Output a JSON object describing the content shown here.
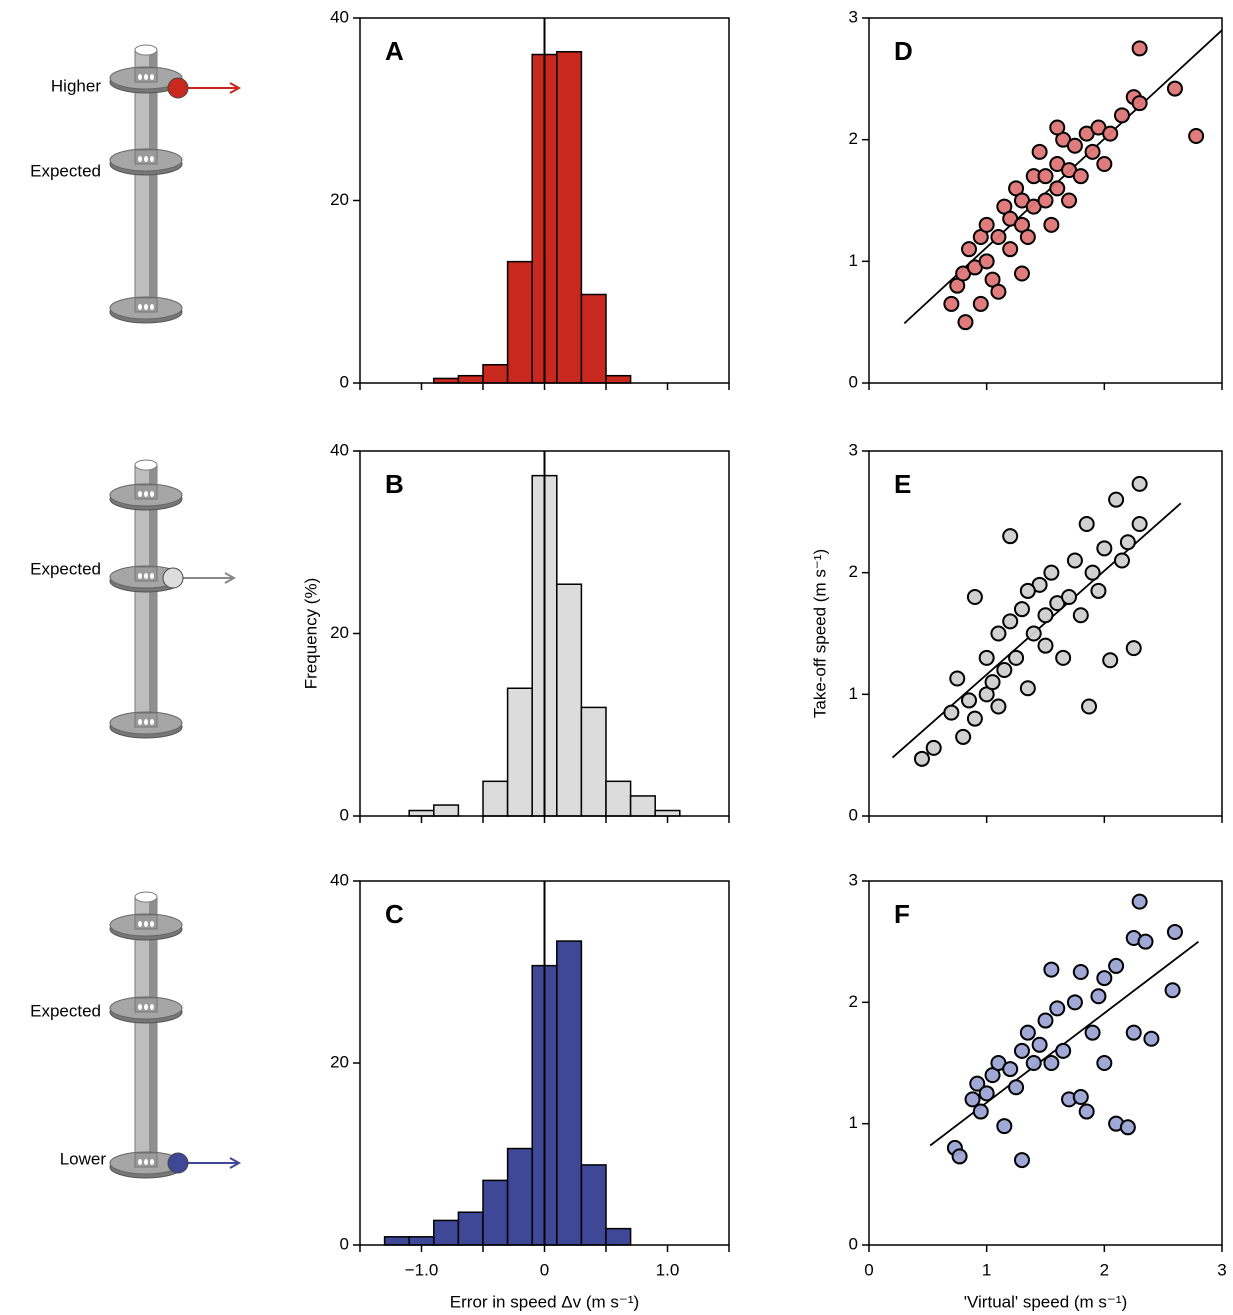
{
  "diagrams": [
    {
      "labels": [
        "Higher",
        "Expected"
      ]
    },
    {
      "labels": [
        "Expected"
      ]
    },
    {
      "labels": [
        "Expected",
        "Lower"
      ]
    }
  ],
  "chart_data": [
    {
      "type": "histogram",
      "label": "A",
      "color": "#c8281e",
      "bins": [
        -0.9,
        -0.7,
        -0.5,
        -0.3,
        -0.1,
        0.1,
        0.3,
        0.5,
        0.7
      ],
      "values": [
        0.5,
        0.8,
        2,
        13.3,
        36,
        36.3,
        9.7,
        0.8
      ],
      "xlim": [
        -1.5,
        1.5
      ],
      "xticks": [
        {
          "value": -1,
          "label": "−1.0"
        },
        0,
        {
          "value": 1,
          "label": "1.0"
        }
      ],
      "xminor_ticks": [
        -1.5,
        -0.5,
        0.5,
        1.5
      ],
      "xtick_labels": false,
      "vline": 0,
      "ylim": [
        0,
        40
      ],
      "yticks": [
        0,
        20,
        40
      ]
    },
    {
      "type": "histogram",
      "label": "B",
      "color": "#dcdcdc",
      "y_label": "Frequency (%)",
      "bins": [
        -1.1,
        -0.9,
        -0.7,
        -0.5,
        -0.3,
        -0.1,
        0.1,
        0.3,
        0.5,
        0.7,
        0.9,
        1.1
      ],
      "values": [
        0.6,
        1.2,
        0,
        3.8,
        14,
        37.3,
        25.4,
        11.9,
        3.8,
        2.2,
        0.6
      ],
      "xlim": [
        -1.5,
        1.5
      ],
      "xticks": [
        {
          "value": -1,
          "label": "−1.0"
        },
        0,
        {
          "value": 1,
          "label": "1.0"
        }
      ],
      "xminor_ticks": [
        -1.5,
        -0.5,
        0.5,
        1.5
      ],
      "xtick_labels": false,
      "vline": 0,
      "ylim": [
        0,
        40
      ],
      "yticks": [
        0,
        20,
        40
      ]
    },
    {
      "type": "histogram",
      "label": "C",
      "color": "#3f4797",
      "x_label": "Error in speed Δv (m s⁻¹)",
      "bins": [
        -1.3,
        -1.1,
        -0.9,
        -0.7,
        -0.5,
        -0.3,
        -0.1,
        0.1,
        0.3,
        0.5,
        0.7
      ],
      "values": [
        0.9,
        0.9,
        2.7,
        3.6,
        7.1,
        10.6,
        30.7,
        33.4,
        8.8,
        1.8
      ],
      "xlim": [
        -1.5,
        1.5
      ],
      "xticks": [
        {
          "value": -1,
          "label": "−1.0"
        },
        0,
        {
          "value": 1,
          "label": "1.0"
        }
      ],
      "xminor_ticks": [
        -1.5,
        -0.5,
        0.5,
        1.5
      ],
      "xtick_labels": true,
      "vline": 0,
      "ylim": [
        0,
        40
      ],
      "yticks": [
        0,
        20,
        40
      ]
    },
    {
      "type": "scatter",
      "label": "D",
      "color": "#de7575",
      "x": [
        0.7,
        0.75,
        0.8,
        0.82,
        0.85,
        0.9,
        0.95,
        1.0,
        1.0,
        1.05,
        1.1,
        1.15,
        1.2,
        1.2,
        1.25,
        1.3,
        1.3,
        1.35,
        1.4,
        1.4,
        1.45,
        1.5,
        1.5,
        1.55,
        1.6,
        1.6,
        1.65,
        1.7,
        1.7,
        1.75,
        1.8,
        1.85,
        1.9,
        1.95,
        2.0,
        2.05,
        2.15,
        2.25,
        2.3,
        2.3,
        2.6,
        2.78,
        1.1,
        0.95,
        1.6,
        1.3
      ],
      "values": [
        0.65,
        0.8,
        0.9,
        0.5,
        1.1,
        0.95,
        1.2,
        1.0,
        1.3,
        0.85,
        1.2,
        1.45,
        1.1,
        1.35,
        1.6,
        1.3,
        1.5,
        1.2,
        1.7,
        1.45,
        1.9,
        1.5,
        1.7,
        1.3,
        1.8,
        1.6,
        2.0,
        1.75,
        1.5,
        1.95,
        1.7,
        2.05,
        1.9,
        2.1,
        1.8,
        2.05,
        2.2,
        2.35,
        2.75,
        2.3,
        2.42,
        2.03,
        0.75,
        0.65,
        2.1,
        0.9
      ],
      "fit_line": {
        "x": [
          0.3,
          3.0
        ],
        "values": [
          0.49,
          2.9
        ]
      },
      "xlim": [
        0,
        3
      ],
      "xticks": [
        0,
        1,
        2,
        3
      ],
      "xtick_labels": false,
      "ylim": [
        0,
        3
      ],
      "yticks": [
        0,
        1,
        2,
        3
      ]
    },
    {
      "type": "scatter",
      "label": "E",
      "color": "#cfcfcf",
      "y_label": "Take-off speed (m s⁻¹)",
      "x": [
        0.45,
        0.55,
        0.7,
        0.75,
        0.8,
        0.85,
        0.9,
        0.9,
        1.0,
        1.0,
        1.05,
        1.1,
        1.1,
        1.15,
        1.2,
        1.2,
        1.25,
        1.3,
        1.35,
        1.4,
        1.45,
        1.5,
        1.5,
        1.55,
        1.6,
        1.65,
        1.7,
        1.75,
        1.8,
        1.85,
        1.87,
        1.9,
        1.95,
        2.0,
        2.05,
        2.1,
        2.2,
        2.25,
        2.3,
        2.3,
        2.15,
        1.35
      ],
      "values": [
        0.47,
        0.56,
        0.85,
        1.13,
        0.65,
        0.95,
        0.8,
        1.8,
        1.0,
        1.3,
        1.1,
        1.5,
        0.9,
        1.2,
        1.6,
        2.3,
        1.3,
        1.7,
        1.05,
        1.5,
        1.9,
        1.4,
        1.65,
        2.0,
        1.75,
        1.3,
        1.8,
        2.1,
        1.65,
        2.4,
        0.9,
        2.0,
        1.85,
        2.2,
        1.28,
        2.6,
        2.25,
        1.38,
        2.4,
        2.73,
        2.1,
        1.85
      ],
      "fit_line": {
        "x": [
          0.2,
          2.65
        ],
        "values": [
          0.48,
          2.57
        ]
      },
      "xlim": [
        0,
        3
      ],
      "xticks": [
        0,
        1,
        2,
        3
      ],
      "xtick_labels": false,
      "ylim": [
        0,
        3
      ],
      "yticks": [
        0,
        1,
        2,
        3
      ]
    },
    {
      "type": "scatter",
      "label": "F",
      "color": "#9ba3d4",
      "x_label": "'Virtual' speed (m s⁻¹)",
      "x": [
        0.73,
        0.77,
        0.88,
        0.92,
        0.95,
        1.0,
        1.05,
        1.1,
        1.15,
        1.2,
        1.25,
        1.3,
        1.3,
        1.35,
        1.4,
        1.45,
        1.5,
        1.55,
        1.55,
        1.6,
        1.65,
        1.7,
        1.75,
        1.8,
        1.85,
        1.9,
        1.95,
        2.0,
        2.0,
        2.1,
        2.1,
        2.2,
        2.25,
        2.25,
        2.3,
        2.35,
        2.4,
        2.6,
        2.58,
        1.8
      ],
      "values": [
        0.8,
        0.73,
        1.2,
        1.33,
        1.1,
        1.25,
        1.4,
        1.5,
        0.98,
        1.45,
        1.3,
        0.7,
        1.6,
        1.75,
        1.5,
        1.65,
        1.85,
        2.27,
        1.5,
        1.95,
        1.6,
        1.2,
        2.0,
        2.25,
        1.1,
        1.75,
        2.05,
        1.5,
        2.2,
        2.3,
        1.0,
        0.97,
        1.75,
        2.53,
        2.83,
        2.5,
        1.7,
        2.58,
        2.1,
        1.22
      ],
      "fit_line": {
        "x": [
          0.52,
          2.8
        ],
        "values": [
          0.82,
          2.5
        ]
      },
      "xlim": [
        0,
        3
      ],
      "xticks": [
        0,
        1,
        2,
        3
      ],
      "xtick_labels": true,
      "ylim": [
        0,
        3
      ],
      "yticks": [
        0,
        1,
        2,
        3
      ]
    }
  ]
}
